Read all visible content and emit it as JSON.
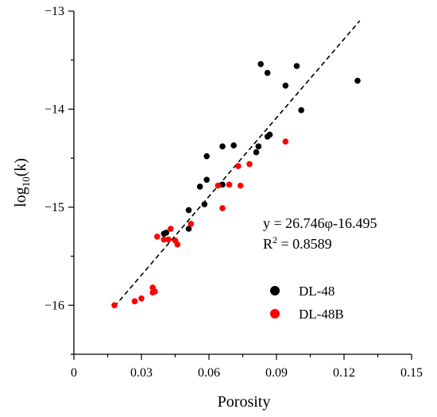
{
  "chart_data": {
    "type": "scatter",
    "xlabel": "Porosity",
    "ylabel_main": "log",
    "ylabel_sub": "10",
    "ylabel_tail": "(k)",
    "xlim": [
      0,
      0.15
    ],
    "ylim": [
      -16.5,
      -13
    ],
    "x_ticks": [
      0,
      0.03,
      0.06,
      0.09,
      0.12,
      0.15
    ],
    "x_tick_labels": [
      "0",
      "0.03",
      "0.06",
      "0.09",
      "0.12",
      "0.15"
    ],
    "y_ticks": [
      -16,
      -15,
      -14,
      -13
    ],
    "y_tick_labels": [
      "−16",
      "−15",
      "−14",
      "−13"
    ],
    "grid": false,
    "legend_position": "right",
    "series": [
      {
        "name": "DL-48",
        "color": "#000000",
        "points": [
          [
            0.04,
            -15.27
          ],
          [
            0.041,
            -15.26
          ],
          [
            0.051,
            -15.03
          ],
          [
            0.051,
            -15.22
          ],
          [
            0.056,
            -14.79
          ],
          [
            0.058,
            -14.97
          ],
          [
            0.059,
            -14.72
          ],
          [
            0.059,
            -14.48
          ],
          [
            0.066,
            -14.77
          ],
          [
            0.066,
            -14.38
          ],
          [
            0.071,
            -14.37
          ],
          [
            0.081,
            -14.44
          ],
          [
            0.082,
            -14.38
          ],
          [
            0.083,
            -13.54
          ],
          [
            0.086,
            -14.28
          ],
          [
            0.086,
            -13.63
          ],
          [
            0.087,
            -14.26
          ],
          [
            0.094,
            -13.76
          ],
          [
            0.099,
            -13.56
          ],
          [
            0.101,
            -14.01
          ],
          [
            0.126,
            -13.71
          ]
        ]
      },
      {
        "name": "DL-48B",
        "color": "#ff0000",
        "points": [
          [
            0.018,
            -16.0
          ],
          [
            0.027,
            -15.96
          ],
          [
            0.03,
            -15.93
          ],
          [
            0.035,
            -15.82
          ],
          [
            0.035,
            -15.87
          ],
          [
            0.036,
            -15.86
          ],
          [
            0.037,
            -15.3
          ],
          [
            0.04,
            -15.33
          ],
          [
            0.042,
            -15.33
          ],
          [
            0.043,
            -15.22
          ],
          [
            0.045,
            -15.34
          ],
          [
            0.046,
            -15.38
          ],
          [
            0.052,
            -15.17
          ],
          [
            0.064,
            -14.78
          ],
          [
            0.066,
            -15.01
          ],
          [
            0.069,
            -14.77
          ],
          [
            0.073,
            -14.58
          ],
          [
            0.074,
            -14.78
          ],
          [
            0.078,
            -14.56
          ],
          [
            0.094,
            -14.33
          ]
        ]
      }
    ],
    "fit_line": {
      "slope": 26.746,
      "intercept": -16.495,
      "x_range": [
        0.018,
        0.127
      ]
    },
    "annotations": {
      "equation": "y = 26.746φ-16.495",
      "r2_main": "R",
      "r2_sup": "2",
      "r2_tail": " = 0.8589"
    }
  }
}
